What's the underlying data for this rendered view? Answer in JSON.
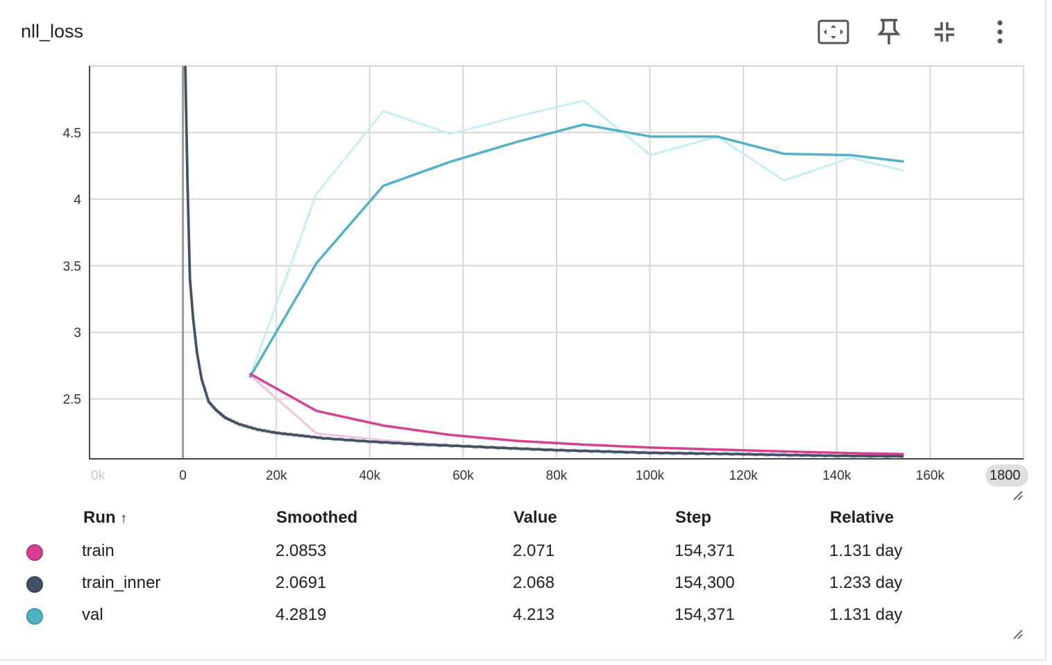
{
  "panel": {
    "title": "nll_loss",
    "toolbar": [
      {
        "name": "fit-domain-icon"
      },
      {
        "name": "pin-icon"
      },
      {
        "name": "collapse-icon"
      },
      {
        "name": "more-vert-icon"
      }
    ]
  },
  "chart_data": {
    "type": "line",
    "title": "nll_loss",
    "xlabel": "",
    "ylabel": "",
    "xlim": [
      -20000,
      180000
    ],
    "ylim": [
      2.05,
      5.0
    ],
    "x_ticks": [
      0,
      20000,
      40000,
      60000,
      80000,
      100000,
      120000,
      140000,
      160000
    ],
    "x_tick_labels": [
      "0",
      "20k",
      "40k",
      "60k",
      "80k",
      "100k",
      "120k",
      "140k",
      "160k"
    ],
    "x_edge_labels": {
      "left": "0k",
      "right": "1800"
    },
    "y_ticks": [
      2.5,
      3,
      3.5,
      4,
      4.5
    ],
    "y_tick_labels": [
      "2.5",
      "3",
      "3.5",
      "4",
      "4.5"
    ],
    "grid": true,
    "series": [
      {
        "name": "val",
        "color": "#4fb3c8",
        "raw_color": "#c6eef6",
        "smoothed": [
          [
            14300,
            2.66
          ],
          [
            28600,
            3.52
          ],
          [
            42900,
            4.1
          ],
          [
            57200,
            4.28
          ],
          [
            71500,
            4.43
          ],
          [
            85800,
            4.56
          ],
          [
            100100,
            4.47
          ],
          [
            114400,
            4.47
          ],
          [
            128700,
            4.34
          ],
          [
            143000,
            4.33
          ],
          [
            154371,
            4.2819
          ]
        ],
        "raw": [
          [
            14300,
            2.66
          ],
          [
            28600,
            4.04
          ],
          [
            42900,
            4.66
          ],
          [
            57200,
            4.49
          ],
          [
            71500,
            4.62
          ],
          [
            85800,
            4.74
          ],
          [
            100100,
            4.33
          ],
          [
            114400,
            4.47
          ],
          [
            128700,
            4.14
          ],
          [
            143000,
            4.31
          ],
          [
            154371,
            4.213
          ]
        ]
      },
      {
        "name": "train",
        "color": "#d63f92",
        "raw_color": "#efc4dd",
        "smoothed": [
          [
            14300,
            2.69
          ],
          [
            28600,
            2.41
          ],
          [
            42900,
            2.3
          ],
          [
            57200,
            2.23
          ],
          [
            71500,
            2.185
          ],
          [
            85800,
            2.157
          ],
          [
            100100,
            2.135
          ],
          [
            114400,
            2.12
          ],
          [
            128700,
            2.105
          ],
          [
            143000,
            2.093
          ],
          [
            154371,
            2.0853
          ]
        ],
        "raw": [
          [
            14300,
            2.68
          ],
          [
            28600,
            2.24
          ],
          [
            42900,
            2.19
          ],
          [
            57200,
            2.15
          ],
          [
            71500,
            2.13
          ],
          [
            85800,
            2.11
          ],
          [
            100100,
            2.1
          ],
          [
            114400,
            2.09
          ],
          [
            128700,
            2.08
          ],
          [
            143000,
            2.075
          ],
          [
            154371,
            2.071
          ]
        ]
      },
      {
        "name": "train_inner",
        "color": "#425066",
        "raw_color": "#a7b0bf",
        "smoothed": [
          [
            500,
            5.0
          ],
          [
            1000,
            4.1
          ],
          [
            1500,
            3.4
          ],
          [
            2200,
            3.1
          ],
          [
            3000,
            2.85
          ],
          [
            4000,
            2.65
          ],
          [
            5500,
            2.48
          ],
          [
            7000,
            2.42
          ],
          [
            9000,
            2.36
          ],
          [
            12000,
            2.31
          ],
          [
            16000,
            2.27
          ],
          [
            20000,
            2.245
          ],
          [
            25000,
            2.225
          ],
          [
            30000,
            2.205
          ],
          [
            40000,
            2.18
          ],
          [
            50000,
            2.16
          ],
          [
            60000,
            2.145
          ],
          [
            70000,
            2.13
          ],
          [
            80000,
            2.115
          ],
          [
            90000,
            2.105
          ],
          [
            100000,
            2.095
          ],
          [
            110000,
            2.09
          ],
          [
            120000,
            2.085
          ],
          [
            130000,
            2.078
          ],
          [
            140000,
            2.073
          ],
          [
            154300,
            2.0691
          ]
        ],
        "raw_end": 2.068
      }
    ],
    "zero_line_x": 0
  },
  "legend_table": {
    "headers": {
      "run": "Run",
      "sort_arrow": "↑",
      "smoothed": "Smoothed",
      "value": "Value",
      "step": "Step",
      "relative": "Relative"
    },
    "rows": [
      {
        "name": "train",
        "color": "#d63f92",
        "smoothed": "2.0853",
        "value": "2.071",
        "step": "154,371",
        "relative": "1.131 day"
      },
      {
        "name": "train_inner",
        "color": "#425066",
        "smoothed": "2.0691",
        "value": "2.068",
        "step": "154,300",
        "relative": "1.233 day"
      },
      {
        "name": "val",
        "color": "#4fb3c8",
        "smoothed": "4.2819",
        "value": "4.213",
        "step": "154,371",
        "relative": "1.131 day"
      }
    ]
  }
}
